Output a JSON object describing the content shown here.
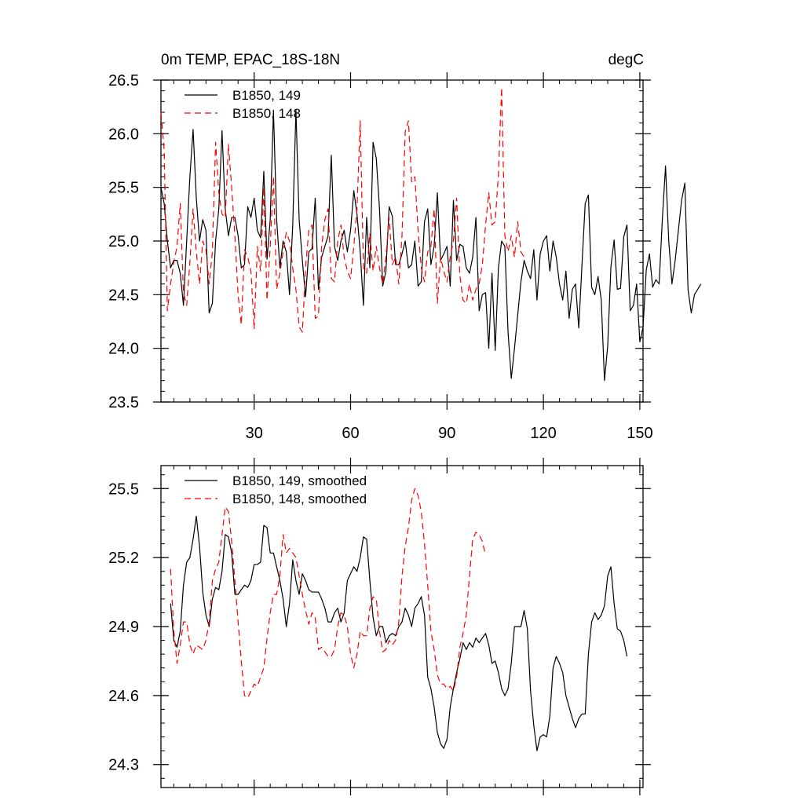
{
  "chart_data": [
    {
      "type": "line",
      "title": "0m TEMP, EPAC_18S-18N",
      "units": "degC",
      "xlim": [
        1,
        151
      ],
      "ylim": [
        23.5,
        26.5
      ],
      "xticks": [
        30,
        60,
        90,
        120,
        150
      ],
      "yticks": [
        23.5,
        24.0,
        24.5,
        25.0,
        25.5,
        26.0,
        26.5
      ],
      "ytick_labels": [
        "23.5",
        "24.0",
        "24.5",
        "25.0",
        "25.5",
        "26.0",
        "26.5"
      ],
      "legend_position": "top-left",
      "series": [
        {
          "name": "B1850, 149",
          "style": "solid",
          "color": "#000000",
          "x_start": 1,
          "values": [
            25.5,
            25.35,
            25.0,
            24.75,
            24.82,
            24.82,
            24.7,
            24.4,
            25.0,
            25.6,
            26.04,
            25.4,
            25.0,
            25.2,
            25.1,
            24.33,
            24.42,
            25.0,
            25.3,
            26.03,
            25.3,
            25.05,
            25.22,
            25.22,
            25.05,
            24.75,
            24.78,
            25.32,
            25.22,
            25.4,
            25.1,
            25.03,
            25.65,
            24.83,
            25.2,
            26.22,
            25.2,
            24.75,
            25.0,
            24.9,
            24.5,
            25.15,
            26.22,
            25.2,
            24.82,
            24.48,
            24.9,
            24.93,
            25.4,
            24.55,
            24.85,
            24.95,
            25.05,
            25.8,
            24.95,
            24.82,
            25.0,
            25.1,
            24.9,
            25.1,
            25.47,
            25.25,
            24.9,
            24.4,
            25.22,
            24.75,
            25.92,
            25.77,
            25.3,
            24.58,
            24.72,
            25.32,
            25.23,
            24.78,
            24.78,
            24.88,
            25.0,
            24.75,
            24.78,
            25.0,
            24.58,
            24.62,
            25.18,
            25.3,
            24.78,
            24.95,
            25.45,
            24.82,
            24.88,
            24.95,
            24.58,
            25.38,
            24.82,
            24.97,
            24.95,
            24.75,
            24.7,
            24.85,
            25.22,
            24.35,
            24.5,
            24.52,
            24.0,
            24.7,
            23.98,
            24.75,
            25.0,
            24.95,
            24.15,
            23.72,
            24.0,
            24.31,
            24.62,
            24.82,
            24.72,
            24.65,
            24.92,
            24.45,
            24.88,
            25.0,
            25.05,
            24.72,
            25.0,
            24.85,
            24.6,
            24.45,
            24.72,
            24.28,
            24.55,
            24.6,
            24.19,
            24.78,
            25.35,
            25.43,
            24.57,
            24.5,
            24.67,
            24.45,
            23.7,
            24.02,
            24.76,
            25.01,
            24.55,
            24.56,
            25.04,
            25.15,
            24.35,
            24.4,
            24.6,
            24.06,
            24.2,
            24.73,
            24.88,
            24.57,
            24.64,
            24.6,
            25.2,
            25.7,
            25.0,
            24.6,
            24.82,
            25.1,
            25.38,
            25.54,
            24.55,
            24.33,
            24.5,
            24.55,
            24.6
          ]
        },
        {
          "name": "B1850, 148",
          "style": "dashed",
          "color": "#ff0000",
          "x_start": 1,
          "values": [
            26.2,
            25.85,
            24.35,
            24.6,
            24.8,
            24.95,
            25.35,
            24.52,
            24.4,
            24.8,
            25.3,
            24.9,
            24.6,
            25.0,
            24.92,
            24.6,
            24.9,
            25.92,
            25.45,
            25.25,
            25.22,
            25.9,
            25.5,
            25.05,
            24.5,
            24.22,
            24.92,
            24.85,
            24.72,
            24.18,
            24.95,
            24.72,
            25.5,
            24.45,
            24.95,
            25.6,
            24.55,
            24.7,
            24.9,
            25.08,
            25.0,
            24.75,
            24.55,
            24.2,
            24.15,
            24.75,
            25.1,
            25.15,
            24.28,
            24.3,
            24.95,
            25.2,
            25.3,
            24.65,
            24.62,
            25.0,
            25.15,
            24.85,
            24.72,
            24.65,
            24.95,
            25.3,
            26.12,
            24.75,
            24.7,
            25.07,
            24.72,
            24.95,
            24.75,
            24.6,
            24.85,
            25.22,
            24.78,
            24.85,
            24.6,
            25.05,
            26.02,
            26.12,
            25.55,
            25.6,
            25.1,
            24.75,
            24.62,
            24.9,
            24.95,
            25.3,
            24.42,
            24.85,
            24.72,
            24.62,
            24.85,
            25.0,
            25.4,
            24.68,
            24.45,
            24.42,
            24.6,
            24.45,
            24.55,
            24.6,
            24.78,
            25.15,
            25.45,
            25.15,
            25.18,
            25.62,
            26.43,
            25.05,
            24.9,
            25.05,
            24.85,
            25.18,
            24.9,
            24.85
          ]
        }
      ]
    },
    {
      "type": "line",
      "xlim": [
        1,
        151
      ],
      "ylim": [
        24.2,
        25.6
      ],
      "xticks": [
        30,
        60,
        90,
        120,
        150
      ],
      "yticks": [
        24.3,
        24.6,
        24.9,
        25.2,
        25.5
      ],
      "ytick_labels": [
        "24.3",
        "24.6",
        "24.9",
        "25.2",
        "25.5"
      ],
      "legend_position": "top-left",
      "series": [
        {
          "name": "B1850, 149, smoothed",
          "style": "solid",
          "color": "#000000",
          "x_start": 4,
          "values": [
            25.0,
            24.84,
            24.81,
            24.88,
            25.08,
            25.18,
            25.2,
            25.28,
            25.38,
            25.25,
            25.05,
            24.95,
            24.9,
            25.02,
            25.07,
            25.06,
            25.14,
            25.3,
            25.29,
            25.22,
            25.04,
            25.04,
            25.06,
            25.08,
            25.07,
            25.1,
            25.17,
            25.17,
            25.18,
            25.34,
            25.33,
            25.22,
            25.22,
            25.16,
            25.1,
            25.02,
            24.9,
            25.0,
            25.19,
            25.1,
            25.04,
            25.13,
            25.1,
            25.06,
            25.05,
            25.05,
            25.05,
            25.02,
            24.98,
            24.92,
            24.92,
            24.96,
            24.98,
            24.92,
            24.96,
            25.1,
            25.13,
            25.16,
            25.14,
            25.2,
            25.29,
            25.28,
            25.1,
            24.94,
            24.86,
            24.9,
            24.9,
            24.83,
            24.86,
            24.87,
            24.86,
            24.9,
            24.92,
            24.98,
            24.95,
            24.9,
            24.98,
            25.0,
            25.03,
            24.95,
            24.68,
            24.63,
            24.55,
            24.44,
            24.39,
            24.37,
            24.41,
            24.55,
            24.63,
            24.7,
            24.76,
            24.83,
            24.8,
            24.83,
            24.81,
            24.85,
            24.83,
            24.85,
            24.87,
            24.82,
            24.74,
            24.75,
            24.7,
            24.63,
            24.6,
            24.63,
            24.74,
            24.9,
            24.9,
            24.9,
            24.97,
            24.89,
            24.62,
            24.47,
            24.36,
            24.42,
            24.43,
            24.42,
            24.51,
            24.72,
            24.77,
            24.74,
            24.7,
            24.6,
            24.55,
            24.5,
            24.46,
            24.5,
            24.52,
            24.52,
            24.78,
            24.92,
            24.96,
            24.93,
            24.95,
            24.99,
            25.12,
            25.16,
            25.0,
            24.89,
            24.88,
            24.84,
            24.77
          ]
        },
        {
          "name": "B1850, 148, smoothed",
          "style": "dashed",
          "color": "#ff0000",
          "x_start": 4,
          "values": [
            25.15,
            24.88,
            24.74,
            24.82,
            24.92,
            24.92,
            24.82,
            24.78,
            24.82,
            24.81,
            24.8,
            24.84,
            24.92,
            25.1,
            25.15,
            25.18,
            25.3,
            25.42,
            25.4,
            25.27,
            25.1,
            24.92,
            24.75,
            24.6,
            24.59,
            24.62,
            24.65,
            24.64,
            24.68,
            24.72,
            24.85,
            24.96,
            25.04,
            25.04,
            25.12,
            25.3,
            25.22,
            25.24,
            25.22,
            25.2,
            25.12,
            25.04,
            24.97,
            24.91,
            24.96,
            24.94,
            24.8,
            24.81,
            24.79,
            24.77,
            24.77,
            24.8,
            24.9,
            24.96,
            24.95,
            24.9,
            24.78,
            24.72,
            24.78,
            24.88,
            24.86,
            24.86,
            24.98,
            25.03,
            25.02,
            24.88,
            24.79,
            24.8,
            24.84,
            24.82,
            24.84,
            24.92,
            25.12,
            25.25,
            25.33,
            25.45,
            25.5,
            25.47,
            25.4,
            25.26,
            25.08,
            24.88,
            24.8,
            24.69,
            24.65,
            24.65,
            24.63,
            24.64,
            24.62,
            24.68,
            24.81,
            24.87,
            24.95,
            25.12,
            25.28,
            25.31,
            25.3,
            25.27,
            25.21
          ]
        }
      ]
    }
  ]
}
